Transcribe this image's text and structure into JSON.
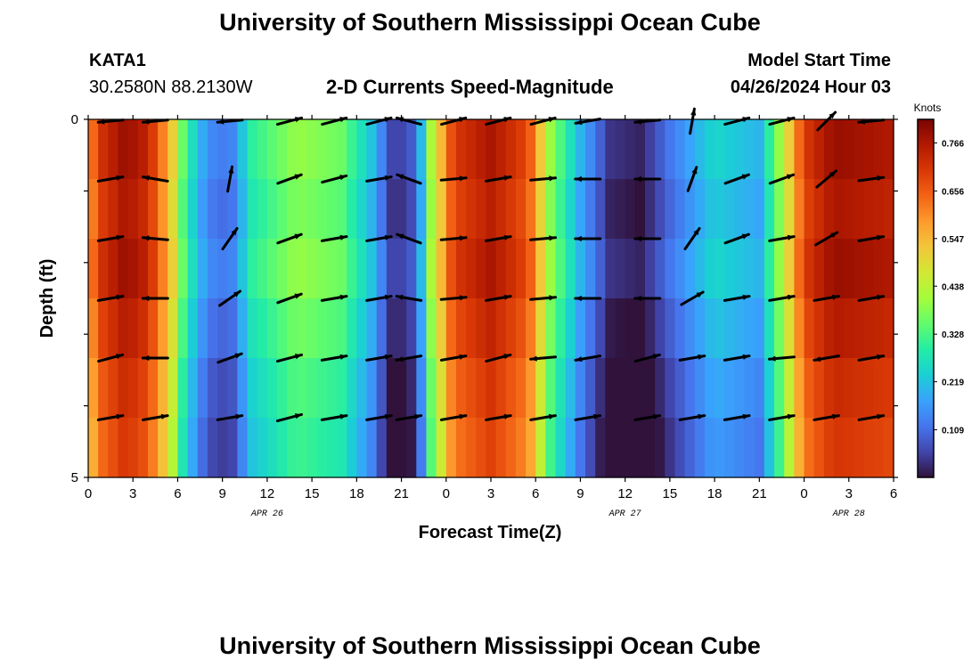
{
  "header": {
    "title_top": "University of Southern Mississippi Ocean Cube",
    "title_bottom": "University of Southern Mississippi Ocean Cube",
    "station": "KATA1",
    "coords": "30.2580N  88.2130W",
    "subtitle": "2-D Currents Speed-Magnitude",
    "model_start_label": "Model Start Time",
    "model_start_value": "04/26/2024 Hour 03"
  },
  "colors": {
    "background": "#ffffff",
    "arrow": "#000000",
    "colormap": [
      "#30123b",
      "#4145ab",
      "#4675ed",
      "#39a2fc",
      "#1bcfd4",
      "#24eca6",
      "#61fc6c",
      "#a4fc3b",
      "#d1e834",
      "#f3c63a",
      "#fe9b2d",
      "#f36315",
      "#d93806",
      "#b11901",
      "#7a0402"
    ]
  },
  "chart_data": {
    "type": "heatmap",
    "title": "2-D Currents Speed-Magnitude",
    "xlabel": "Forecast Time(Z)",
    "ylabel": "Depth (ft)",
    "colorbar_label": "Knots",
    "x_tick_labels": [
      "0",
      "3",
      "6",
      "9",
      "12",
      "15",
      "18",
      "21",
      "0",
      "3",
      "6",
      "9",
      "12",
      "15",
      "18",
      "21",
      "0",
      "3",
      "6"
    ],
    "x_hours": [
      0,
      3,
      6,
      9,
      12,
      15,
      18,
      21,
      24,
      27,
      30,
      33,
      36,
      39,
      42,
      45,
      48,
      51,
      54
    ],
    "x_range_hours": [
      0,
      54
    ],
    "date_labels": [
      {
        "text": "APR 26",
        "hour": 12
      },
      {
        "text": "APR 27",
        "hour": 36
      },
      {
        "text": "APR 28",
        "hour": 51
      }
    ],
    "y_tick_labels": [
      "0",
      "5"
    ],
    "y_range": [
      0,
      5
    ],
    "depth_levels": [
      0,
      1,
      2,
      3,
      4,
      5
    ],
    "colorbar_ticks": [
      "0.109",
      "0.219",
      "0.328",
      "0.438",
      "0.547",
      "0.656",
      "0.766"
    ],
    "colorbar_range": [
      0,
      0.82
    ],
    "speed_profile_knots": [
      {
        "hour": 0,
        "speed": 0.6
      },
      {
        "hour": 1,
        "speed": 0.72
      },
      {
        "hour": 2.5,
        "speed": 0.79
      },
      {
        "hour": 4,
        "speed": 0.74
      },
      {
        "hour": 5.5,
        "speed": 0.55
      },
      {
        "hour": 6.5,
        "speed": 0.32
      },
      {
        "hour": 8,
        "speed": 0.15
      },
      {
        "hour": 9.5,
        "speed": 0.12
      },
      {
        "hour": 11,
        "speed": 0.3
      },
      {
        "hour": 14,
        "speed": 0.4
      },
      {
        "hour": 17,
        "speed": 0.36
      },
      {
        "hour": 19,
        "speed": 0.22
      },
      {
        "hour": 20.5,
        "speed": 0.04
      },
      {
        "hour": 22,
        "speed": 0.1
      },
      {
        "hour": 23,
        "speed": 0.42
      },
      {
        "hour": 24.5,
        "speed": 0.7
      },
      {
        "hour": 27,
        "speed": 0.77
      },
      {
        "hour": 29.5,
        "speed": 0.68
      },
      {
        "hour": 31,
        "speed": 0.4
      },
      {
        "hour": 33,
        "speed": 0.2
      },
      {
        "hour": 35,
        "speed": 0.04
      },
      {
        "hour": 37,
        "speed": 0.02
      },
      {
        "hour": 39,
        "speed": 0.12
      },
      {
        "hour": 42,
        "speed": 0.25
      },
      {
        "hour": 45,
        "speed": 0.2
      },
      {
        "hour": 46.5,
        "speed": 0.42
      },
      {
        "hour": 48,
        "speed": 0.7
      },
      {
        "hour": 50,
        "speed": 0.79
      },
      {
        "hour": 54,
        "speed": 0.76
      }
    ],
    "depth_row_offsets_knots": [
      0.0,
      -0.02,
      0.0,
      -0.03,
      -0.06,
      -0.08
    ],
    "vector_hours": [
      1.5,
      4.5,
      9.5,
      13.5,
      16.5,
      19.5,
      21.5,
      24.5,
      27.5,
      30.5,
      33.5,
      37.5,
      40.5,
      43.5,
      46.5,
      49.5,
      52.5
    ],
    "vector_angles_deg": [
      [
        185,
        185,
        185,
        15,
        15,
        15,
        165,
        15,
        15,
        15,
        190,
        185,
        80,
        15,
        15,
        45,
        185
      ],
      [
        10,
        170,
        80,
        20,
        15,
        10,
        160,
        5,
        10,
        5,
        180,
        180,
        70,
        20,
        20,
        40,
        8
      ],
      [
        10,
        175,
        55,
        20,
        10,
        10,
        160,
        5,
        10,
        5,
        180,
        180,
        55,
        20,
        10,
        30,
        10
      ],
      [
        10,
        180,
        35,
        20,
        10,
        10,
        170,
        5,
        10,
        5,
        180,
        180,
        30,
        10,
        10,
        10,
        10
      ],
      [
        15,
        180,
        20,
        15,
        10,
        10,
        190,
        10,
        15,
        185,
        190,
        15,
        10,
        10,
        185,
        190,
        10
      ],
      [
        10,
        10,
        10,
        15,
        10,
        10,
        10,
        10,
        10,
        10,
        10,
        10,
        10,
        10,
        10,
        10,
        10
      ]
    ]
  }
}
